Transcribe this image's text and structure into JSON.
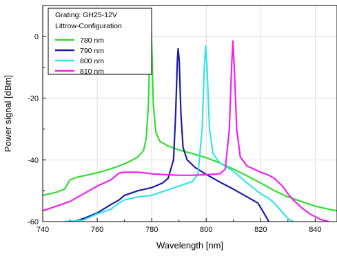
{
  "chart_data": {
    "type": "line",
    "title": "",
    "xlabel": "Wavelength [nm]",
    "ylabel": "Power signal [dBm]",
    "xlim": [
      740,
      848
    ],
    "ylim": [
      -60,
      10
    ],
    "x_ticks": [
      740,
      760,
      780,
      800,
      820,
      840
    ],
    "y_ticks": [
      0,
      -20,
      -40,
      -60
    ],
    "x_tick_labels": [
      "740",
      "760",
      "780",
      "800",
      "820",
      "840"
    ],
    "y_tick_labels": [
      "0",
      "-20",
      "-40",
      "-60"
    ],
    "grid": true,
    "legend_placement": "top-left",
    "legend_header": [
      "Grating: GH25-12V",
      "Littrow-Configuration"
    ],
    "series": [
      {
        "name": "780 nm",
        "color": "#33dd33",
        "points": [
          [
            740,
            -51.5
          ],
          [
            745,
            -50.5
          ],
          [
            748,
            -49.5
          ],
          [
            750,
            -46.5
          ],
          [
            753,
            -45.5
          ],
          [
            756,
            -45
          ],
          [
            760,
            -44.2
          ],
          [
            764,
            -43.2
          ],
          [
            768,
            -42
          ],
          [
            772,
            -40.5
          ],
          [
            775,
            -39
          ],
          [
            777,
            -37
          ],
          [
            778,
            -33
          ],
          [
            778.8,
            -22
          ],
          [
            779.3,
            -5
          ],
          [
            779.7,
            6
          ],
          [
            780.1,
            -5
          ],
          [
            780.6,
            -22
          ],
          [
            781.5,
            -31
          ],
          [
            783,
            -34
          ],
          [
            786,
            -35.5
          ],
          [
            790,
            -36.8
          ],
          [
            795,
            -38
          ],
          [
            800,
            -39.3
          ],
          [
            805,
            -41
          ],
          [
            810,
            -43
          ],
          [
            815,
            -45.2
          ],
          [
            820,
            -47.5
          ],
          [
            825,
            -50
          ],
          [
            830,
            -52
          ],
          [
            835,
            -53.5
          ],
          [
            840,
            -55
          ],
          [
            845,
            -56
          ],
          [
            848,
            -56.5
          ]
        ]
      },
      {
        "name": "790 nm",
        "color": "#1a1aaa",
        "points": [
          [
            751,
            -60
          ],
          [
            755,
            -59
          ],
          [
            760,
            -57.2
          ],
          [
            765,
            -54.5
          ],
          [
            768,
            -53
          ],
          [
            770,
            -51.5
          ],
          [
            775,
            -50
          ],
          [
            780,
            -49
          ],
          [
            784,
            -47.5
          ],
          [
            786,
            -46
          ],
          [
            788,
            -40
          ],
          [
            788.8,
            -25
          ],
          [
            789.4,
            -8
          ],
          [
            789.7,
            -4
          ],
          [
            790.1,
            -8
          ],
          [
            790.7,
            -25
          ],
          [
            791.5,
            -36
          ],
          [
            793,
            -40
          ],
          [
            796,
            -42.5
          ],
          [
            800,
            -44.7
          ],
          [
            805,
            -47.2
          ],
          [
            810,
            -49.5
          ],
          [
            815,
            -52
          ],
          [
            819,
            -54
          ],
          [
            821,
            -57
          ],
          [
            823,
            -60
          ]
        ]
      },
      {
        "name": "800 nm",
        "color": "#33e6e6",
        "points": [
          [
            748,
            -60
          ],
          [
            755,
            -59.5
          ],
          [
            760,
            -57.5
          ],
          [
            765,
            -56
          ],
          [
            768,
            -54
          ],
          [
            770,
            -53
          ],
          [
            775,
            -52
          ],
          [
            780,
            -51.5
          ],
          [
            785,
            -50
          ],
          [
            790,
            -48.5
          ],
          [
            795,
            -47
          ],
          [
            797,
            -44.5
          ],
          [
            798.5,
            -30
          ],
          [
            799.3,
            -10
          ],
          [
            799.8,
            -3
          ],
          [
            800.3,
            -10
          ],
          [
            801.2,
            -30
          ],
          [
            802.5,
            -38
          ],
          [
            805,
            -41
          ],
          [
            810,
            -43.7
          ],
          [
            815,
            -47.5
          ],
          [
            820,
            -51
          ],
          [
            823,
            -52.5
          ],
          [
            825,
            -54
          ],
          [
            827,
            -56
          ],
          [
            830,
            -59
          ],
          [
            832,
            -60
          ]
        ]
      },
      {
        "name": "810 nm",
        "color": "#ee22ee",
        "points": [
          [
            740,
            -56.5
          ],
          [
            745,
            -55
          ],
          [
            750,
            -53.5
          ],
          [
            755,
            -51
          ],
          [
            760,
            -48.5
          ],
          [
            765,
            -46.5
          ],
          [
            768,
            -44.3
          ],
          [
            770,
            -44
          ],
          [
            775,
            -44
          ],
          [
            780,
            -44.5
          ],
          [
            785,
            -44.8
          ],
          [
            790,
            -45
          ],
          [
            795,
            -45
          ],
          [
            800,
            -44.8
          ],
          [
            805,
            -44.5
          ],
          [
            807,
            -43
          ],
          [
            808.5,
            -30
          ],
          [
            809.3,
            -10
          ],
          [
            809.8,
            -1.5
          ],
          [
            810.3,
            -10
          ],
          [
            811.2,
            -30
          ],
          [
            812.5,
            -39
          ],
          [
            815,
            -42
          ],
          [
            820,
            -44
          ],
          [
            823,
            -45
          ],
          [
            825,
            -46
          ],
          [
            828,
            -48.5
          ],
          [
            830,
            -51
          ],
          [
            832,
            -53
          ],
          [
            835,
            -55.5
          ],
          [
            838,
            -57.5
          ],
          [
            842,
            -59.3
          ],
          [
            845,
            -60
          ]
        ]
      }
    ]
  }
}
